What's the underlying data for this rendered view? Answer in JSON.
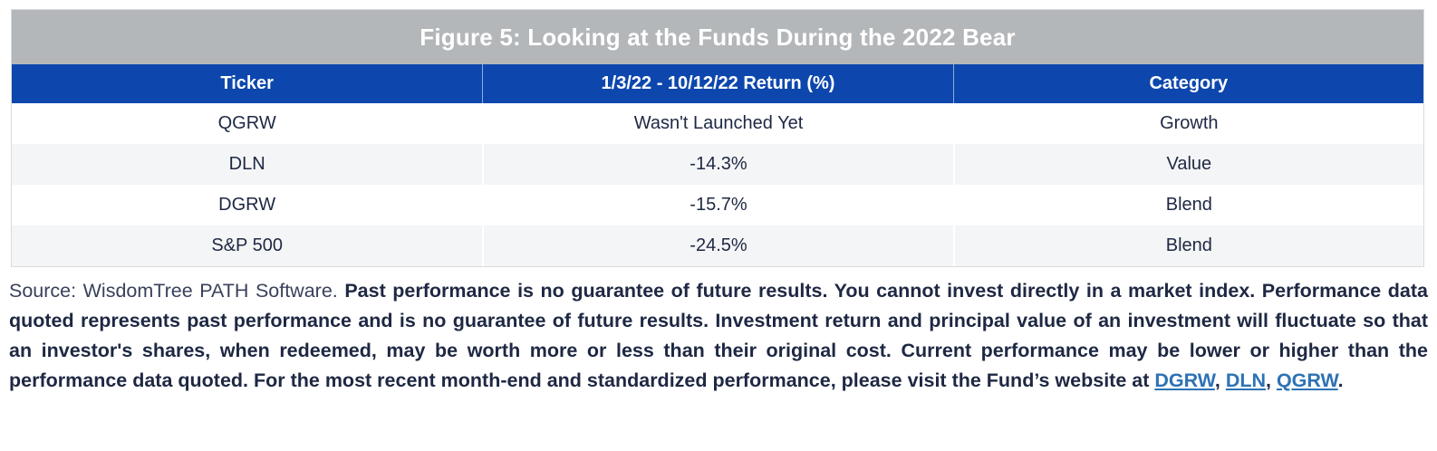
{
  "colors": {
    "title_bar_bg": "#b4b7b9",
    "header_bg": "#0d47ad",
    "row_alt_bg": "#f4f5f6",
    "body_text": "#1e2843",
    "source_text": "#39415a",
    "link": "#2e72b4",
    "table_border": "#d8dbde"
  },
  "table": {
    "title": "Figure 5: Looking at the Funds During the 2022 Bear",
    "columns": [
      "Ticker",
      "1/3/22 - 10/12/22 Return (%)",
      "Category"
    ],
    "rows": [
      [
        "QGRW",
        "Wasn't Launched Yet",
        "Growth"
      ],
      [
        "DLN",
        "-14.3%",
        "Value"
      ],
      [
        "DGRW",
        "-15.7%",
        "Blend"
      ],
      [
        "S&P 500",
        "-24.5%",
        "Blend"
      ]
    ]
  },
  "footer": {
    "source": "Source: WisdomTree PATH Software. ",
    "disclaimer": "Past performance is no guarantee of future results. You cannot invest directly in a market index. Performance data quoted represents past performance and is no guarantee of future results. Investment return and principal value of an investment will fluctuate so that an investor's shares, when redeemed, may be worth more or less than their original cost. Current performance may be lower or higher than the performance data quoted. For the most recent month-end and standardized performance, please visit the Fund’s website at ",
    "links": [
      "DGRW",
      "DLN",
      "QGRW"
    ],
    "separator": ", ",
    "terminator": "."
  }
}
